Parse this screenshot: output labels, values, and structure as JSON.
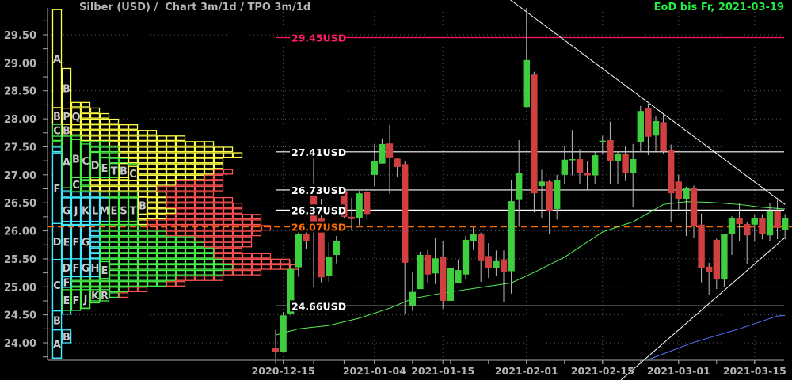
{
  "header": {
    "title": "Silber (USD) /  Chart 3m/1d / TPO 3m/1d",
    "eod_label": "EoD bis Fr, 2021-03-19"
  },
  "colors": {
    "background": "#000000",
    "axis_text": "#b4b4b4",
    "grid": "#5a5a5a",
    "candle_up": "#3ecf3e",
    "candle_down": "#d04040",
    "wick": "#bdbdbd",
    "ma_green": "#55ee55",
    "ma_blue": "#5577ff",
    "trendline": "#ffffff",
    "level_high": "#ff1a66",
    "level_current": "#ff6a00",
    "level_white": "#ffffff",
    "tpo_cyan": "#40e8ff",
    "tpo_green": "#48ee48",
    "tpo_yellow": "#ffff44",
    "tpo_red": "#ff5252"
  },
  "chart_data": {
    "type": "candlestick",
    "instrument": "Silber (USD)",
    "ylim": [
      23.7,
      30.0
    ],
    "y_ticks": [
      "24.00",
      "24.50",
      "25.00",
      "25.50",
      "26.00",
      "26.50",
      "27.00",
      "27.50",
      "28.00",
      "28.50",
      "29.00",
      "29.50"
    ],
    "x_ticks": [
      "2020-12-15",
      "2021-01-04",
      "2021-01-15",
      "2021-02-01",
      "2021-02-15",
      "2021-03-01",
      "2021-03-15"
    ],
    "grid": true,
    "candles_columns": [
      "date",
      "open",
      "high",
      "low",
      "close"
    ],
    "candles": [
      [
        "2020-12-14",
        23.91,
        24.23,
        23.72,
        23.83
      ],
      [
        "2020-12-15",
        23.83,
        24.55,
        23.83,
        24.49
      ],
      [
        "2020-12-16",
        24.51,
        25.47,
        24.47,
        25.32
      ],
      [
        "2020-12-17",
        25.35,
        26.0,
        25.18,
        25.95
      ],
      [
        "2020-12-18",
        25.95,
        26.0,
        25.68,
        25.81
      ],
      [
        "2020-12-21",
        26.62,
        27.29,
        24.99,
        26.16
      ],
      [
        "2020-12-22",
        26.22,
        26.56,
        25.08,
        25.17
      ],
      [
        "2020-12-23",
        25.2,
        25.79,
        25.09,
        25.53
      ],
      [
        "2020-12-24",
        25.57,
        25.91,
        25.42,
        25.81
      ],
      [
        "2020-12-28",
        26.71,
        26.75,
        26.22,
        26.25
      ],
      [
        "2020-12-29",
        26.25,
        26.59,
        26.0,
        26.21
      ],
      [
        "2020-12-30",
        26.22,
        26.71,
        26.1,
        26.67
      ],
      [
        "2020-12-31",
        26.69,
        26.75,
        26.2,
        26.3
      ],
      [
        "2021-01-04",
        27.0,
        27.55,
        26.8,
        27.24
      ],
      [
        "2021-01-05",
        27.2,
        27.65,
        27.2,
        27.55
      ],
      [
        "2021-01-06",
        27.56,
        27.89,
        26.66,
        27.31
      ],
      [
        "2021-01-07",
        27.29,
        27.3,
        26.97,
        27.14
      ],
      [
        "2021-01-08",
        27.19,
        27.24,
        24.52,
        25.43
      ],
      [
        "2021-01-11",
        24.67,
        25.26,
        24.57,
        24.91
      ],
      [
        "2021-01-12",
        24.96,
        25.63,
        24.96,
        25.57
      ],
      [
        "2021-01-13",
        25.57,
        25.66,
        25.08,
        25.22
      ],
      [
        "2021-01-14",
        25.24,
        25.88,
        25.05,
        25.51
      ],
      [
        "2021-01-15",
        25.53,
        25.82,
        24.61,
        24.75
      ],
      [
        "2021-01-18",
        24.75,
        25.34,
        24.75,
        25.34
      ],
      [
        "2021-01-19",
        25.06,
        25.49,
        25.06,
        25.3
      ],
      [
        "2021-01-20",
        25.22,
        25.91,
        25.13,
        25.84
      ],
      [
        "2021-01-21",
        25.82,
        26.06,
        25.66,
        25.94
      ],
      [
        "2021-01-22",
        25.94,
        25.97,
        25.09,
        25.46
      ],
      [
        "2021-01-25",
        25.55,
        25.78,
        25.16,
        25.34
      ],
      [
        "2021-01-26",
        25.34,
        25.65,
        25.2,
        25.46
      ],
      [
        "2021-01-27",
        25.49,
        25.65,
        24.73,
        25.26
      ],
      [
        "2021-01-28",
        25.28,
        26.91,
        24.88,
        26.53
      ],
      [
        "2021-01-29",
        26.55,
        27.62,
        26.07,
        27.03
      ],
      [
        "2021-02-01",
        28.21,
        29.98,
        28.21,
        29.05
      ],
      [
        "2021-02-02",
        28.79,
        28.84,
        26.33,
        26.67
      ],
      [
        "2021-02-03",
        26.8,
        27.09,
        26.22,
        26.88
      ],
      [
        "2021-02-04",
        26.88,
        26.9,
        25.95,
        26.35
      ],
      [
        "2021-02-05",
        26.39,
        27.0,
        26.2,
        26.91
      ],
      [
        "2021-02-08",
        27.0,
        27.51,
        26.84,
        27.27
      ],
      [
        "2021-02-09",
        27.26,
        27.8,
        26.99,
        27.28
      ],
      [
        "2021-02-10",
        27.28,
        27.46,
        26.84,
        27.03
      ],
      [
        "2021-02-11",
        27.03,
        27.24,
        26.72,
        26.99
      ],
      [
        "2021-02-12",
        26.99,
        27.41,
        26.84,
        27.35
      ],
      [
        "2021-02-15",
        27.59,
        27.7,
        27.37,
        27.61
      ],
      [
        "2021-02-16",
        27.62,
        27.95,
        26.84,
        27.25
      ],
      [
        "2021-02-17",
        27.25,
        27.41,
        26.84,
        27.38
      ],
      [
        "2021-02-18",
        27.38,
        27.51,
        26.89,
        27.03
      ],
      [
        "2021-02-19",
        27.04,
        27.55,
        26.42,
        27.28
      ],
      [
        "2021-02-22",
        27.58,
        28.23,
        27.4,
        28.14
      ],
      [
        "2021-02-23",
        28.19,
        28.27,
        27.35,
        27.68
      ],
      [
        "2021-02-24",
        27.7,
        28.05,
        27.4,
        27.96
      ],
      [
        "2021-02-25",
        27.94,
        28.08,
        27.38,
        27.42
      ],
      [
        "2021-02-26",
        27.45,
        27.54,
        26.15,
        26.67
      ],
      [
        "2021-03-01",
        26.88,
        27.0,
        26.38,
        26.56
      ],
      [
        "2021-03-02",
        26.56,
        26.79,
        25.91,
        26.77
      ],
      [
        "2021-03-03",
        26.77,
        26.81,
        25.88,
        26.08
      ],
      [
        "2021-03-04",
        26.11,
        26.31,
        25.08,
        25.34
      ],
      [
        "2021-03-05",
        25.36,
        25.43,
        24.85,
        25.26
      ],
      [
        "2021-03-08",
        25.84,
        25.86,
        24.96,
        25.13
      ],
      [
        "2021-03-09",
        25.13,
        25.94,
        25.0,
        25.94
      ],
      [
        "2021-03-10",
        25.94,
        26.26,
        25.57,
        26.22
      ],
      [
        "2021-03-11",
        26.23,
        26.49,
        25.81,
        26.12
      ],
      [
        "2021-03-12",
        26.12,
        26.15,
        25.41,
        25.92
      ],
      [
        "2021-03-15",
        26.11,
        26.29,
        25.81,
        26.22
      ],
      [
        "2021-03-16",
        26.23,
        26.3,
        25.85,
        25.95
      ],
      [
        "2021-03-17",
        25.92,
        26.5,
        25.81,
        26.36
      ],
      [
        "2021-03-18",
        26.36,
        26.59,
        25.85,
        26.05
      ],
      [
        "2021-03-19",
        26.02,
        26.3,
        25.85,
        26.23
      ]
    ],
    "moving_averages": [
      {
        "color_key": "ma_green",
        "points": [
          [
            "2020-12-14",
            24.14
          ],
          [
            "2020-12-17",
            24.25
          ],
          [
            "2020-12-23",
            24.31
          ],
          [
            "2020-12-30",
            24.44
          ],
          [
            "2021-01-06",
            24.62
          ],
          [
            "2021-01-11",
            24.79
          ],
          [
            "2021-01-15",
            24.89
          ],
          [
            "2021-01-22",
            24.99
          ],
          [
            "2021-01-28",
            25.07
          ],
          [
            "2021-02-02",
            25.26
          ],
          [
            "2021-02-08",
            25.53
          ],
          [
            "2021-02-15",
            25.98
          ],
          [
            "2021-02-19",
            26.16
          ],
          [
            "2021-02-25",
            26.47
          ],
          [
            "2021-03-02",
            26.52
          ],
          [
            "2021-03-05",
            26.51
          ],
          [
            "2021-03-11",
            26.47
          ],
          [
            "2021-03-16",
            26.42
          ],
          [
            "2021-03-19",
            26.39
          ]
        ]
      },
      {
        "color_key": "ma_blue",
        "points": [
          [
            "2021-02-23",
            23.7
          ],
          [
            "2021-03-03",
            24.01
          ],
          [
            "2021-03-11",
            24.25
          ],
          [
            "2021-03-18",
            24.48
          ],
          [
            "2021-03-19",
            24.49
          ]
        ]
      }
    ],
    "trendlines": [
      {
        "from": [
          "2021-02-01",
          29.91
        ],
        "to": [
          "2021-03-19",
          26.47
        ]
      },
      {
        "from": [
          "2021-02-22",
          23.64
        ],
        "to": [
          "2021-03-19",
          25.88
        ]
      }
    ],
    "levels": [
      {
        "price": 29.45,
        "label": "29.45USD",
        "color_key": "level_high",
        "style": "solid"
      },
      {
        "price": 27.41,
        "label": "27.41USD",
        "color_key": "level_white",
        "style": "solid"
      },
      {
        "price": 26.73,
        "label": "26.73USD",
        "color_key": "level_white",
        "style": "solid"
      },
      {
        "price": 26.37,
        "label": "26.37USD",
        "color_key": "level_white",
        "style": "solid"
      },
      {
        "price": 26.07,
        "label": "26.07USD",
        "color_key": "level_current",
        "style": "dashed"
      },
      {
        "price": 24.66,
        "label": "24.66USD",
        "color_key": "level_white",
        "style": "solid"
      }
    ],
    "tpo": {
      "bucket": 0.1,
      "color_codes": {
        "c": "tpo_cyan",
        "g": "tpo_green",
        "y": "tpo_yellow",
        "r": "tpo_red"
      },
      "rows": [
        [
          28.2,
          "yyyy"
        ],
        [
          28.1,
          "yyyyy"
        ],
        [
          28.0,
          "yyyyyy"
        ],
        [
          27.9,
          "yyyyyyy"
        ],
        [
          27.8,
          "gyyyyyyyy"
        ],
        [
          27.7,
          "gyyyyyyyyyy"
        ],
        [
          27.6,
          "gggyyyyyyyyyyy"
        ],
        [
          27.5,
          "ggggggyyyyyyyyyyy"
        ],
        [
          27.4,
          "cggggggyyyyyyyyyyyy"
        ],
        [
          27.3,
          "cggggggyyyyyyyyyyyyy"
        ],
        [
          27.2,
          "cgggggggyyyyyyyyyy"
        ],
        [
          27.1,
          "cggggggggyyyyyyyyy"
        ],
        [
          27.0,
          "cgggggggyyyyyyyyyrr"
        ],
        [
          26.9,
          "cgggyyyyyyyyyyyyrr"
        ],
        [
          26.8,
          "cgggyyyyyyyyyrrrrr"
        ],
        [
          26.7,
          "cccgyyyyyyyrrrrrrr"
        ],
        [
          26.6,
          "cccccggggyyyrrrrr"
        ],
        [
          26.5,
          "ccccccgggyyyrrrrrrr"
        ],
        [
          26.4,
          "ccccccgggyyyrrrrrrrr"
        ],
        [
          26.3,
          "ccccccgggyyyyrrrrrrr"
        ],
        [
          26.2,
          "ccccccggyyyyrrrrrrrrrr"
        ],
        [
          26.1,
          "cccccggggyrrrrrrrrrrrr"
        ],
        [
          26.0,
          "cccccgggggrrrrrrrrrrrrr"
        ],
        [
          25.9,
          "cccccgggggggrrrrrrrrrr"
        ],
        [
          25.8,
          "cccccggggggggggrrrrrr"
        ],
        [
          25.7,
          "cccccgggggggggggrrrrr"
        ],
        [
          25.6,
          "cccccggggggggggggrrr"
        ],
        [
          25.5,
          "cccccggggggggggggrrrrrr"
        ],
        [
          25.4,
          "cccccgggggggggggggrrrrrrr"
        ],
        [
          25.3,
          "cccccggggggggggggggrrrrrrr"
        ],
        [
          25.2,
          "ccccggggggggggggggrrrr"
        ],
        [
          25.1,
          "cggggggggggggrrrrr"
        ],
        [
          25.0,
          "cgggggggggggrr"
        ],
        [
          24.9,
          "cgggggggrr"
        ],
        [
          24.8,
          "cggggggr"
        ],
        [
          24.7,
          "cgggg"
        ],
        [
          24.6,
          "cggg"
        ],
        [
          24.5,
          "cc"
        ],
        [
          24.4,
          "c"
        ],
        [
          24.3,
          "c"
        ],
        [
          24.2,
          "c"
        ],
        [
          24.1,
          "cc"
        ],
        [
          24.0,
          "cc"
        ],
        [
          23.9,
          "c"
        ],
        [
          23.8,
          "c"
        ],
        [
          23.7,
          "c"
        ]
      ],
      "letter_blocks": [
        [
          "A",
          0,
          28.2,
          29.95,
          "y"
        ],
        [
          "B",
          0,
          27.9,
          28.2,
          "y"
        ],
        [
          "C",
          0,
          27.69,
          27.9,
          "g"
        ],
        [
          "F",
          0,
          26.13,
          27.39,
          "c"
        ],
        [
          "D",
          0,
          25.49,
          26.13,
          "c"
        ],
        [
          "C",
          0,
          24.57,
          25.49,
          "c"
        ],
        [
          "B",
          0,
          24.23,
          24.57,
          "c"
        ],
        [
          "A",
          0,
          23.73,
          24.23,
          "c"
        ],
        [
          "B",
          1,
          28.19,
          28.9,
          "y"
        ],
        [
          "P",
          1,
          27.9,
          28.19,
          "y"
        ],
        [
          "B",
          1,
          27.69,
          27.9,
          "y"
        ],
        [
          "A",
          1,
          26.77,
          27.69,
          "g"
        ],
        [
          "G",
          1,
          26.17,
          26.57,
          "c"
        ],
        [
          "E",
          1,
          25.5,
          26.1,
          "c"
        ],
        [
          "D",
          1,
          25.18,
          25.5,
          "c"
        ],
        [
          "F",
          1,
          24.99,
          25.18,
          "c"
        ],
        [
          "E",
          1,
          24.58,
          24.95,
          "g"
        ],
        [
          "B",
          1,
          24.0,
          24.23,
          "c"
        ],
        [
          "Q",
          2,
          27.9,
          28.19,
          "y"
        ],
        [
          "B",
          2,
          26.95,
          27.63,
          "g"
        ],
        [
          "C",
          2,
          26.7,
          26.95,
          "g"
        ],
        [
          "J",
          2,
          26.17,
          26.57,
          "c"
        ],
        [
          "F",
          2,
          25.5,
          26.1,
          "c"
        ],
        [
          "F",
          2,
          25.18,
          25.5,
          "c"
        ],
        [
          "F",
          2,
          24.58,
          24.95,
          "g"
        ],
        [
          "C",
          3,
          26.95,
          27.55,
          "g"
        ],
        [
          "K",
          3,
          26.17,
          26.57,
          "c"
        ],
        [
          "G",
          3,
          25.5,
          26.1,
          "c"
        ],
        [
          "G",
          3,
          25.18,
          25.5,
          "c"
        ],
        [
          "J",
          3,
          24.62,
          24.95,
          "g"
        ],
        [
          "D",
          4,
          26.95,
          27.4,
          "g"
        ],
        [
          "L",
          4,
          26.17,
          26.57,
          "c"
        ],
        [
          "H",
          4,
          25.18,
          25.5,
          "c"
        ],
        [
          "K",
          4,
          24.75,
          24.95,
          "g"
        ],
        [
          "E",
          5,
          26.95,
          27.3,
          "g"
        ],
        [
          "M",
          5,
          26.17,
          26.57,
          "c"
        ],
        [
          "E",
          5,
          25.15,
          25.45,
          "g"
        ],
        [
          "R",
          5,
          24.75,
          24.95,
          "g"
        ],
        [
          "T",
          6,
          26.95,
          27.2,
          "g"
        ],
        [
          "E",
          6,
          26.17,
          26.57,
          "g"
        ],
        [
          "B",
          7,
          26.95,
          27.2,
          "y"
        ],
        [
          "S",
          7,
          26.17,
          26.57,
          "g"
        ],
        [
          "C",
          8,
          26.9,
          27.15,
          "y"
        ],
        [
          "T",
          8,
          26.17,
          26.57,
          "g"
        ],
        [
          "B",
          9,
          26.3,
          26.6,
          "y"
        ]
      ]
    }
  }
}
